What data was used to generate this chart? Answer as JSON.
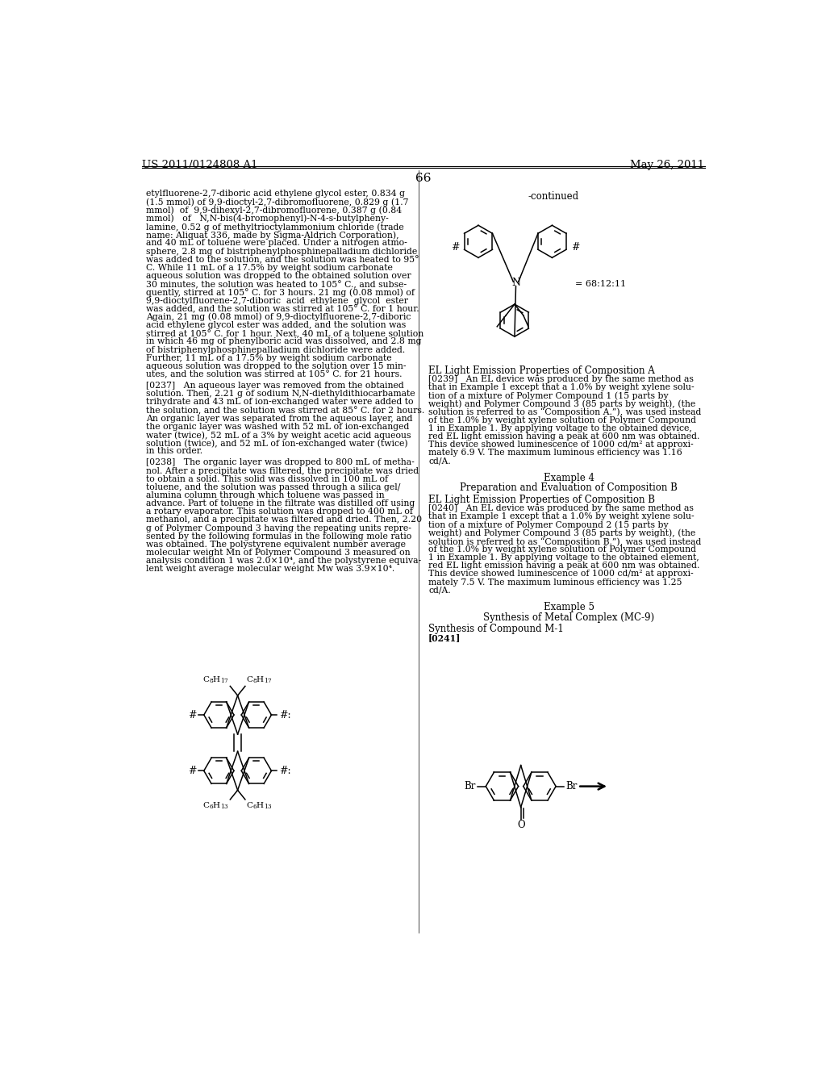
{
  "background_color": "#ffffff",
  "page_number": "66",
  "header_left": "US 2011/0124808 A1",
  "header_right": "May 26, 2011",
  "continued_label": "-continued",
  "ratio_label": "= 68:12:11",
  "col1_lines": [
    "etylfluorene-2,7-diboric acid ethylene glycol ester, 0.834 g",
    "(1.5 mmol) of 9,9-dioctyl-2,7-dibromofluorene, 0.829 g (1.7",
    "mmol)  of  9,9-dihexyl-2,7-dibromofluorene, 0.387 g (0.84",
    "mmol)   of   N,N-bis(4-bromophenyl)-N-4-s-butylpheny-",
    "lamine, 0.52 g of methyltrioctylammonium chloride (trade",
    "name: Aliquat 336, made by Sigma-Aldrich Corporation),",
    "and 40 mL of toluene were placed. Under a nitrogen atmo-",
    "sphere, 2.8 mg of bistriphenylphosphinepalladium dichloride",
    "was added to the solution, and the solution was heated to 95°",
    "C. While 11 mL of a 17.5% by weight sodium carbonate",
    "aqueous solution was dropped to the obtained solution over",
    "30 minutes, the solution was heated to 105° C., and subse-",
    "quently, stirred at 105° C. for 3 hours. 21 mg (0.08 mmol) of",
    "9,9-dioctylfluorene-2,7-diboric  acid  ethylene  glycol  ester",
    "was added, and the solution was stirred at 105° C. for 1 hour.",
    "Again, 21 mg (0.08 mmol) of 9,9-dioctylfluorene-2,7-diboric",
    "acid ethylene glycol ester was added, and the solution was",
    "stirred at 105° C. for 1 hour. Next, 40 mL of a toluene solution",
    "in which 46 mg of phenylboric acid was dissolved, and 2.8 mg",
    "of bistriphenylphosphinepalladium dichloride were added.",
    "Further, 11 mL of a 17.5% by weight sodium carbonate",
    "aqueous solution was dropped to the solution over 15 min-",
    "utes, and the solution was stirred at 105° C. for 21 hours."
  ],
  "p237_lines": [
    "[0237]   An aqueous layer was removed from the obtained",
    "solution. Then, 2.21 g of sodium N,N-diethyldithiocarbamate",
    "trihydrate and 43 mL of ion-exchanged water were added to",
    "the solution, and the solution was stirred at 85° C. for 2 hours.",
    "An organic layer was separated from the aqueous layer, and",
    "the organic layer was washed with 52 mL of ion-exchanged",
    "water (twice), 52 mL of a 3% by weight acetic acid aqueous",
    "solution (twice), and 52 mL of ion-exchanged water (twice)",
    "in this order."
  ],
  "p238_lines": [
    "[0238]   The organic layer was dropped to 800 mL of metha-",
    "nol. After a precipitate was filtered, the precipitate was dried",
    "to obtain a solid. This solid was dissolved in 100 mL of",
    "toluene, and the solution was passed through a silica gel/",
    "alumina column through which toluene was passed in",
    "advance. Part of toluene in the filtrate was distilled off using",
    "a rotary evaporator. This solution was dropped to 400 mL of",
    "methanol, and a precipitate was filtered and dried. Then, 2.20",
    "g of Polymer Compound 3 having the repeating units repre-",
    "sented by the following formulas in the following mole ratio",
    "was obtained. The polystyrene equivalent number average",
    "molecular weight Mn of Polymer Compound 3 measured on",
    "analysis condition 1 was 2.0×10⁴, and the polystyrene equiva-",
    "lent weight average molecular weight Mw was 3.9×10⁴."
  ],
  "el_a_heading": "EL Light Emission Properties of Composition A",
  "p239_lines": [
    "[0239]   An EL device was produced by the same method as",
    "that in Example 1 except that a 1.0% by weight xylene solu-",
    "tion of a mixture of Polymer Compound 1 (15 parts by",
    "weight) and Polymer Compound 3 (85 parts by weight), (the",
    "solution is referred to as “Composition A.”), was used instead",
    "of the 1.0% by weight xylene solution of Polymer Compound",
    "1 in Example 1. By applying voltage to the obtained device,",
    "red EL light emission having a peak at 600 nm was obtained.",
    "This device showed luminescence of 1000 cd/m² at approxi-",
    "mately 6.9 V. The maximum luminous efficiency was 1.16",
    "cd/A."
  ],
  "example4_heading": "Example 4",
  "example4_sub": "Preparation and Evaluation of Composition B",
  "el_b_heading": "EL Light Emission Properties of Composition B",
  "p240_lines": [
    "[0240]   An EL device was produced by the same method as",
    "that in Example 1 except that a 1.0% by weight xylene solu-",
    "tion of a mixture of Polymer Compound 2 (15 parts by",
    "weight) and Polymer Compound 3 (85 parts by weight), (the",
    "solution is referred to as “Composition B.”), was used instead",
    "of the 1.0% by weight xylene solution of Polymer Compound",
    "1 in Example 1. By applying voltage to the obtained element,",
    "red EL light emission having a peak at 600 nm was obtained.",
    "This device showed luminescence of 1000 cd/m² at approxi-",
    "mately 7.5 V. The maximum luminous efficiency was 1.25",
    "cd/A."
  ],
  "example5_heading": "Example 5",
  "example5_sub": "Synthesis of Metal Complex (MC-9)",
  "synth_m1": "Synthesis of Compound M-1",
  "p241_label": "[0241]"
}
